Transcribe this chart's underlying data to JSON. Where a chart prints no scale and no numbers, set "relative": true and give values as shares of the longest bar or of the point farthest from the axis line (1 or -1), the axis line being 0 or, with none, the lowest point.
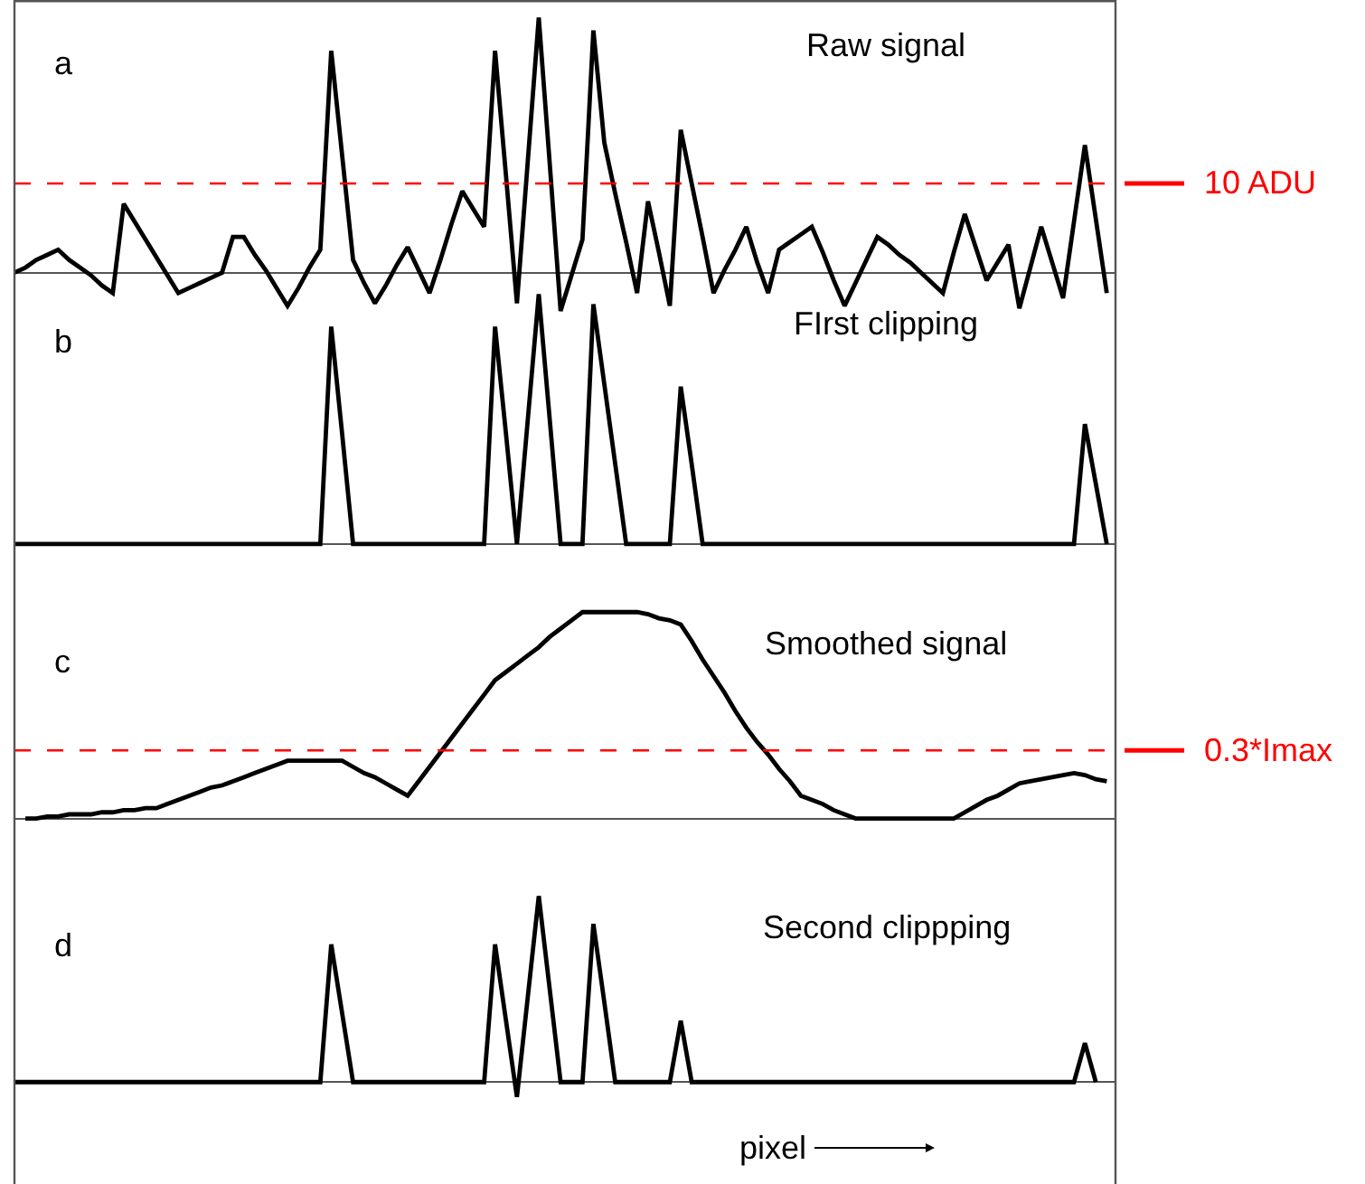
{
  "chart_data": [
    {
      "type": "line",
      "title": "Raw signal",
      "annotations": [
        "a"
      ],
      "relative": true,
      "grid": false,
      "line_style": "solid",
      "categories": [
        null,
        null,
        null,
        null,
        null,
        null,
        null,
        null,
        null,
        null,
        null,
        null,
        null,
        null,
        null,
        null,
        null,
        null,
        null,
        null,
        null,
        null,
        null,
        null,
        null,
        null,
        null,
        null,
        null,
        null,
        null,
        null,
        null,
        null,
        null,
        null,
        null,
        null,
        null,
        null,
        null,
        null,
        null,
        null,
        null,
        null,
        null,
        null,
        null,
        null,
        null,
        null,
        null,
        null,
        null,
        null,
        null,
        null,
        null,
        null,
        null,
        null,
        null,
        null,
        null,
        null,
        null,
        null,
        null,
        null,
        null,
        null,
        null,
        null,
        null,
        null,
        null,
        null,
        null,
        null,
        null,
        null,
        null,
        null,
        null,
        null,
        null,
        null,
        null,
        null,
        null,
        null,
        null,
        null,
        null,
        null,
        null,
        null,
        null,
        null,
        null
      ],
      "series": [
        {
          "color": "#000000",
          "values": [
            0,
            0.02,
            0.05,
            0.07,
            0.09,
            0.05,
            0.02,
            -0.01,
            -0.05,
            -0.08,
            0.27,
            0.2,
            0.13,
            0.06,
            -0.01,
            -0.08,
            -0.06,
            -0.04,
            -0.02,
            0,
            0.14,
            0.14,
            0.07,
            0.01,
            -0.06,
            -0.13,
            -0.06,
            0.02,
            0.09,
            0.87,
            0.46,
            0.05,
            -0.04,
            -0.12,
            -0.05,
            0.03,
            0.1,
            0.01,
            -0.08,
            0.05,
            0.19,
            0.32,
            0.25,
            0.18,
            0.87,
            0.38,
            -0.12,
            0.44,
            1,
            0.43,
            -0.15,
            -0.01,
            0.13,
            0.95,
            0.51,
            0.31,
            0.12,
            -0.08,
            0.28,
            0.08,
            -0.13,
            0.56,
            0.35,
            0.14,
            -0.08,
            0.01,
            0.09,
            0.18,
            0.04,
            -0.08,
            0.09,
            0.12,
            0.15,
            0.18,
            0.08,
            -0.03,
            -0.13,
            -0.04,
            0.05,
            0.14,
            0.11,
            0.07,
            0.04,
            0,
            -0.04,
            -0.08,
            0.08,
            0.23,
            0.1,
            -0.03,
            0.04,
            0.11,
            -0.14,
            0.02,
            0.18,
            0.04,
            -0.1,
            0.2,
            0.5,
            0.21,
            -0.08
          ]
        }
      ],
      "ref_lines": [
        {
          "axis": "y",
          "value": 0.35,
          "label": "10 ADU",
          "color": "#ff0000",
          "line_style": "dashed"
        }
      ]
    },
    {
      "type": "line",
      "title": "FIrst clipping",
      "annotations": [
        "b"
      ],
      "relative": true,
      "grid": false,
      "line_style": "solid",
      "categories": [
        null,
        null,
        null,
        null,
        null,
        null,
        null,
        null,
        null,
        null,
        null,
        null,
        null,
        null,
        null,
        null,
        null,
        null,
        null,
        null,
        null,
        null,
        null,
        null,
        null,
        null,
        null,
        null,
        null,
        null,
        null,
        null,
        null,
        null,
        null,
        null,
        null,
        null,
        null,
        null,
        null,
        null,
        null,
        null,
        null,
        null,
        null,
        null,
        null,
        null,
        null,
        null,
        null,
        null,
        null,
        null,
        null,
        null,
        null,
        null,
        null,
        null,
        null,
        null,
        null,
        null,
        null,
        null,
        null,
        null,
        null,
        null,
        null,
        null,
        null,
        null,
        null,
        null,
        null,
        null,
        null,
        null,
        null,
        null,
        null,
        null,
        null,
        null,
        null,
        null,
        null,
        null,
        null,
        null,
        null,
        null,
        null,
        null,
        null,
        null,
        null
      ],
      "series": [
        {
          "color": "#000000",
          "values": [
            0,
            0,
            0,
            0,
            0,
            0,
            0,
            0,
            0,
            0,
            0,
            0,
            0,
            0,
            0,
            0,
            0,
            0,
            0,
            0,
            0,
            0,
            0,
            0,
            0,
            0,
            0,
            0,
            0,
            0.87,
            0.44,
            0,
            0,
            0,
            0,
            0,
            0,
            0,
            0,
            0,
            0,
            0,
            0,
            0,
            0.87,
            0.44,
            0,
            0.5,
            1,
            0.5,
            0,
            0,
            0,
            0.96,
            0.64,
            0.32,
            0,
            0,
            0,
            0,
            0,
            0.63,
            0.32,
            0,
            0,
            0,
            0,
            0,
            0,
            0,
            0,
            0,
            0,
            0,
            0,
            0,
            0,
            0,
            0,
            0,
            0,
            0,
            0,
            0,
            0,
            0,
            0,
            0,
            0,
            0,
            0,
            0,
            0,
            0,
            0,
            0,
            0,
            0,
            0.48,
            0.24,
            0
          ]
        }
      ]
    },
    {
      "type": "line",
      "title": "Smoothed signal",
      "annotations": [
        "c"
      ],
      "relative": true,
      "grid": false,
      "line_style": "solid",
      "categories": [
        null,
        null,
        null,
        null,
        null,
        null,
        null,
        null,
        null,
        null,
        null,
        null,
        null,
        null,
        null,
        null,
        null,
        null,
        null,
        null,
        null,
        null,
        null,
        null,
        null,
        null,
        null,
        null,
        null,
        null,
        null,
        null,
        null,
        null,
        null,
        null,
        null,
        null,
        null,
        null,
        null,
        null,
        null,
        null,
        null,
        null,
        null,
        null,
        null,
        null,
        null,
        null,
        null,
        null,
        null,
        null,
        null,
        null,
        null,
        null,
        null,
        null,
        null,
        null,
        null,
        null,
        null,
        null,
        null,
        null,
        null,
        null,
        null,
        null,
        null,
        null,
        null,
        null,
        null,
        null,
        null,
        null,
        null,
        null,
        null,
        null,
        null,
        null,
        null,
        null,
        null,
        null,
        null,
        null,
        null,
        null,
        null,
        null,
        null,
        null,
        null
      ],
      "series": [
        {
          "color": "#000000",
          "values": [
            null,
            0,
            0,
            0.01,
            0.01,
            0.02,
            0.02,
            0.02,
            0.03,
            0.03,
            0.04,
            0.04,
            0.05,
            0.05,
            0.07,
            0.09,
            0.11,
            0.13,
            0.15,
            0.16,
            0.18,
            0.2,
            0.22,
            0.24,
            0.26,
            0.28,
            0.28,
            0.28,
            0.28,
            0.28,
            0.28,
            0.25,
            0.22,
            0.2,
            0.17,
            0.14,
            0.11,
            0.18,
            0.25,
            0.32,
            0.39,
            0.46,
            0.53,
            0.6,
            0.67,
            0.71,
            0.75,
            0.79,
            0.83,
            0.88,
            0.92,
            0.96,
            1,
            1,
            1,
            1,
            1,
            1,
            0.99,
            0.97,
            0.96,
            0.94,
            0.86,
            0.77,
            0.69,
            0.61,
            0.52,
            0.44,
            0.37,
            0.31,
            0.24,
            0.18,
            0.11,
            0.09,
            0.07,
            0.04,
            0.02,
            0,
            0,
            0,
            0,
            0,
            0,
            0,
            0,
            0,
            0,
            0.03,
            0.06,
            0.09,
            0.11,
            0.14,
            0.17,
            0.18,
            0.19,
            0.2,
            0.21,
            0.22,
            0.21,
            0.19,
            0.18
          ]
        }
      ],
      "ref_lines": [
        {
          "axis": "y",
          "value": 0.33,
          "label": "0.3*Imax",
          "color": "#ff0000",
          "line_style": "dashed"
        }
      ]
    },
    {
      "type": "line",
      "title": "Second clippping",
      "xlabel": "pixel",
      "annotations": [
        "d"
      ],
      "relative": true,
      "grid": false,
      "line_style": "solid",
      "categories": [
        null,
        null,
        null,
        null,
        null,
        null,
        null,
        null,
        null,
        null,
        null,
        null,
        null,
        null,
        null,
        null,
        null,
        null,
        null,
        null,
        null,
        null,
        null,
        null,
        null,
        null,
        null,
        null,
        null,
        null,
        null,
        null,
        null,
        null,
        null,
        null,
        null,
        null,
        null,
        null,
        null,
        null,
        null,
        null,
        null,
        null,
        null,
        null,
        null,
        null,
        null,
        null,
        null,
        null,
        null,
        null,
        null,
        null,
        null,
        null,
        null,
        null,
        null,
        null,
        null,
        null,
        null,
        null,
        null,
        null,
        null,
        null,
        null,
        null,
        null,
        null,
        null,
        null,
        null,
        null,
        null,
        null,
        null,
        null,
        null,
        null,
        null,
        null,
        null,
        null,
        null,
        null,
        null,
        null,
        null,
        null,
        null,
        null,
        null,
        null,
        null
      ],
      "series": [
        {
          "color": "#000000",
          "values": [
            0,
            0,
            0,
            0,
            0,
            0,
            0,
            0,
            0,
            0,
            0,
            0,
            0,
            0,
            0,
            0,
            0,
            0,
            0,
            0,
            0,
            0,
            0,
            0,
            0,
            0,
            0,
            0,
            0,
            0.74,
            0.37,
            0,
            0,
            0,
            0,
            0,
            0,
            0,
            0,
            0,
            0,
            0,
            0,
            0,
            0.74,
            0.33,
            -0.08,
            0.46,
            1,
            0.5,
            0,
            0,
            0,
            0.85,
            0.43,
            0,
            0,
            0,
            0,
            0,
            0,
            0.33,
            0,
            0,
            0,
            0,
            0,
            0,
            0,
            0,
            0,
            0,
            0,
            0,
            0,
            0,
            0,
            0,
            0,
            0,
            0,
            0,
            0,
            0,
            0,
            0,
            0,
            0,
            0,
            0,
            0,
            0,
            0,
            0,
            0,
            0,
            0,
            0,
            0.21,
            0,
            null
          ]
        }
      ]
    }
  ]
}
